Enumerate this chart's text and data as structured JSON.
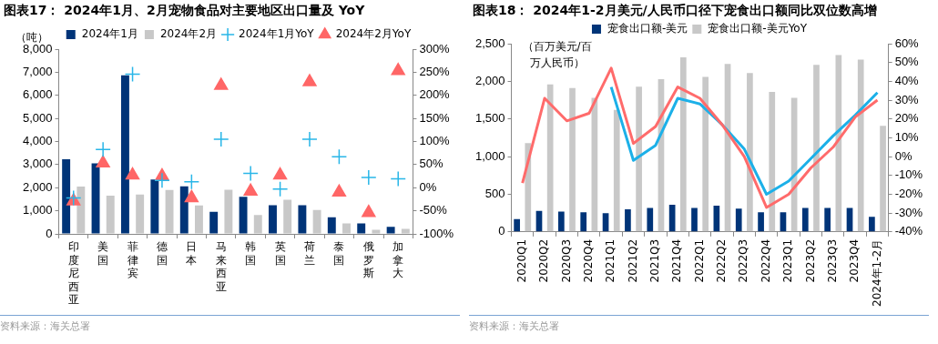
{
  "chart_data": [
    {
      "type": "bar",
      "title": "图表17：  2024年1月、2月宠物食品对主要地区出口量及 YoY",
      "ylabel": "（吨）",
      "annotations": [
        "资料来源：海关总署"
      ],
      "categories": [
        "印度尼西亚",
        "美国",
        "菲律宾",
        "德国",
        "日本",
        "马来西亚",
        "韩国",
        "英国",
        "荷兰",
        "泰国",
        "俄罗斯",
        "加拿大"
      ],
      "series": [
        {
          "name": "2024年1月",
          "color": "#003478",
          "values": [
            3230,
            3050,
            6870,
            2350,
            2060,
            960,
            1610,
            1240,
            1240,
            720,
            450,
            310
          ]
        },
        {
          "name": "2024年2月",
          "color": "#c8c8c8",
          "values": [
            2050,
            1660,
            1700,
            1900,
            1230,
            1910,
            820,
            1480,
            1030,
            450,
            180,
            220
          ]
        },
        {
          "name": "2024年1月YoY",
          "type": "scatter",
          "marker": "cross",
          "axis": "y2",
          "color": "#29b6e8",
          "values": [
            -22,
            83,
            246,
            16,
            13,
            105,
            31,
            -3,
            105,
            67,
            22,
            19
          ]
        },
        {
          "name": "2024年2月YoY",
          "type": "scatter",
          "marker": "triangle",
          "axis": "y2",
          "color": "#ff6666",
          "values": [
            -29,
            53,
            27,
            25,
            -22,
            221,
            -8,
            27,
            229,
            -10,
            -54,
            253
          ]
        }
      ],
      "ylim": [
        0,
        8000
      ],
      "yticks": [
        {
          "value": 0,
          "label": "0"
        },
        {
          "value": 1000,
          "label": "1,000"
        },
        {
          "value": 2000,
          "label": "2,000"
        },
        {
          "value": 3000,
          "label": "3,000"
        },
        {
          "value": 4000,
          "label": "4,000"
        },
        {
          "value": 5000,
          "label": "5,000"
        },
        {
          "value": 6000,
          "label": "6,000"
        },
        {
          "value": 7000,
          "label": "7,000"
        },
        {
          "value": 8000,
          "label": "8,000"
        }
      ],
      "y2lim": [
        -100,
        300
      ],
      "y2ticks": [
        {
          "value": -100,
          "label": "-100%"
        },
        {
          "value": -50,
          "label": "-50%"
        },
        {
          "value": 0,
          "label": "0%"
        },
        {
          "value": 50,
          "label": "50%"
        },
        {
          "value": 100,
          "label": "100%"
        },
        {
          "value": 150,
          "label": "150%"
        },
        {
          "value": 200,
          "label": "200%"
        },
        {
          "value": 250,
          "label": "250%"
        },
        {
          "value": 300,
          "label": "300%"
        }
      ],
      "legend": "top"
    },
    {
      "type": "bar",
      "title": "图表18：  2024年1-2月美元/人民币口径下宠食出口额同比双位数高增",
      "ylabel": "（百万美元/百万人民币）",
      "annotations": [
        "资料来源：海关总署"
      ],
      "categories": [
        "2020Q1",
        "2020Q2",
        "2020Q3",
        "2020Q4",
        "2021Q1",
        "2021Q2",
        "2021Q3",
        "2021Q4",
        "2022Q1",
        "2022Q2",
        "2022Q3",
        "2022Q4",
        "2023Q1",
        "2023Q2",
        "2023Q3",
        "2023Q4",
        "2024年1-2月"
      ],
      "series": [
        {
          "name": "宠食出口额-美元",
          "color": "#003478",
          "values": [
            170,
            280,
            270,
            260,
            250,
            300,
            320,
            360,
            320,
            350,
            310,
            260,
            260,
            320,
            320,
            320,
            200
          ]
        },
        {
          "name": "宠食出口额-美元YoY",
          "color": "#c8c8c8",
          "values": [
            1180,
            1960,
            1910,
            1780,
            1620,
            1930,
            2030,
            2320,
            2060,
            2230,
            2110,
            1860,
            1780,
            2220,
            2350,
            2290,
            1410
          ]
        },
        {
          "type": "line",
          "marker": "none",
          "axis": "y2",
          "color": "#ff6b6b",
          "values": [
            -14,
            31,
            19,
            23,
            47,
            7,
            16,
            37,
            31,
            17,
            0,
            -27,
            -20,
            -6,
            5,
            21,
            30
          ]
        },
        {
          "type": "line",
          "marker": "none",
          "axis": "y2",
          "color": "#1cb0e8",
          "values": [
            null,
            null,
            null,
            null,
            37,
            -2,
            6,
            31,
            28,
            17,
            4,
            -20,
            -13,
            -1,
            11,
            22,
            34
          ]
        }
      ],
      "ylim": [
        0,
        2500
      ],
      "yticks": [
        {
          "value": 0,
          "label": "0"
        },
        {
          "value": 500,
          "label": "500"
        },
        {
          "value": 1000,
          "label": "1,000"
        },
        {
          "value": 1500,
          "label": "1,500"
        },
        {
          "value": 2000,
          "label": "2,000"
        },
        {
          "value": 2500,
          "label": "2,500"
        }
      ],
      "y2lim": [
        -40,
        60
      ],
      "y2ticks": [
        {
          "value": -40,
          "label": "-40%"
        },
        {
          "value": -30,
          "label": "-30%"
        },
        {
          "value": -20,
          "label": "-20%"
        },
        {
          "value": -10,
          "label": "-10%"
        },
        {
          "value": 0,
          "label": "0%"
        },
        {
          "value": 10,
          "label": "10%"
        },
        {
          "value": 20,
          "label": "20%"
        },
        {
          "value": 30,
          "label": "30%"
        },
        {
          "value": 40,
          "label": "40%"
        },
        {
          "value": 50,
          "label": "50%"
        },
        {
          "value": 60,
          "label": "60%"
        }
      ],
      "legend": "top"
    }
  ]
}
